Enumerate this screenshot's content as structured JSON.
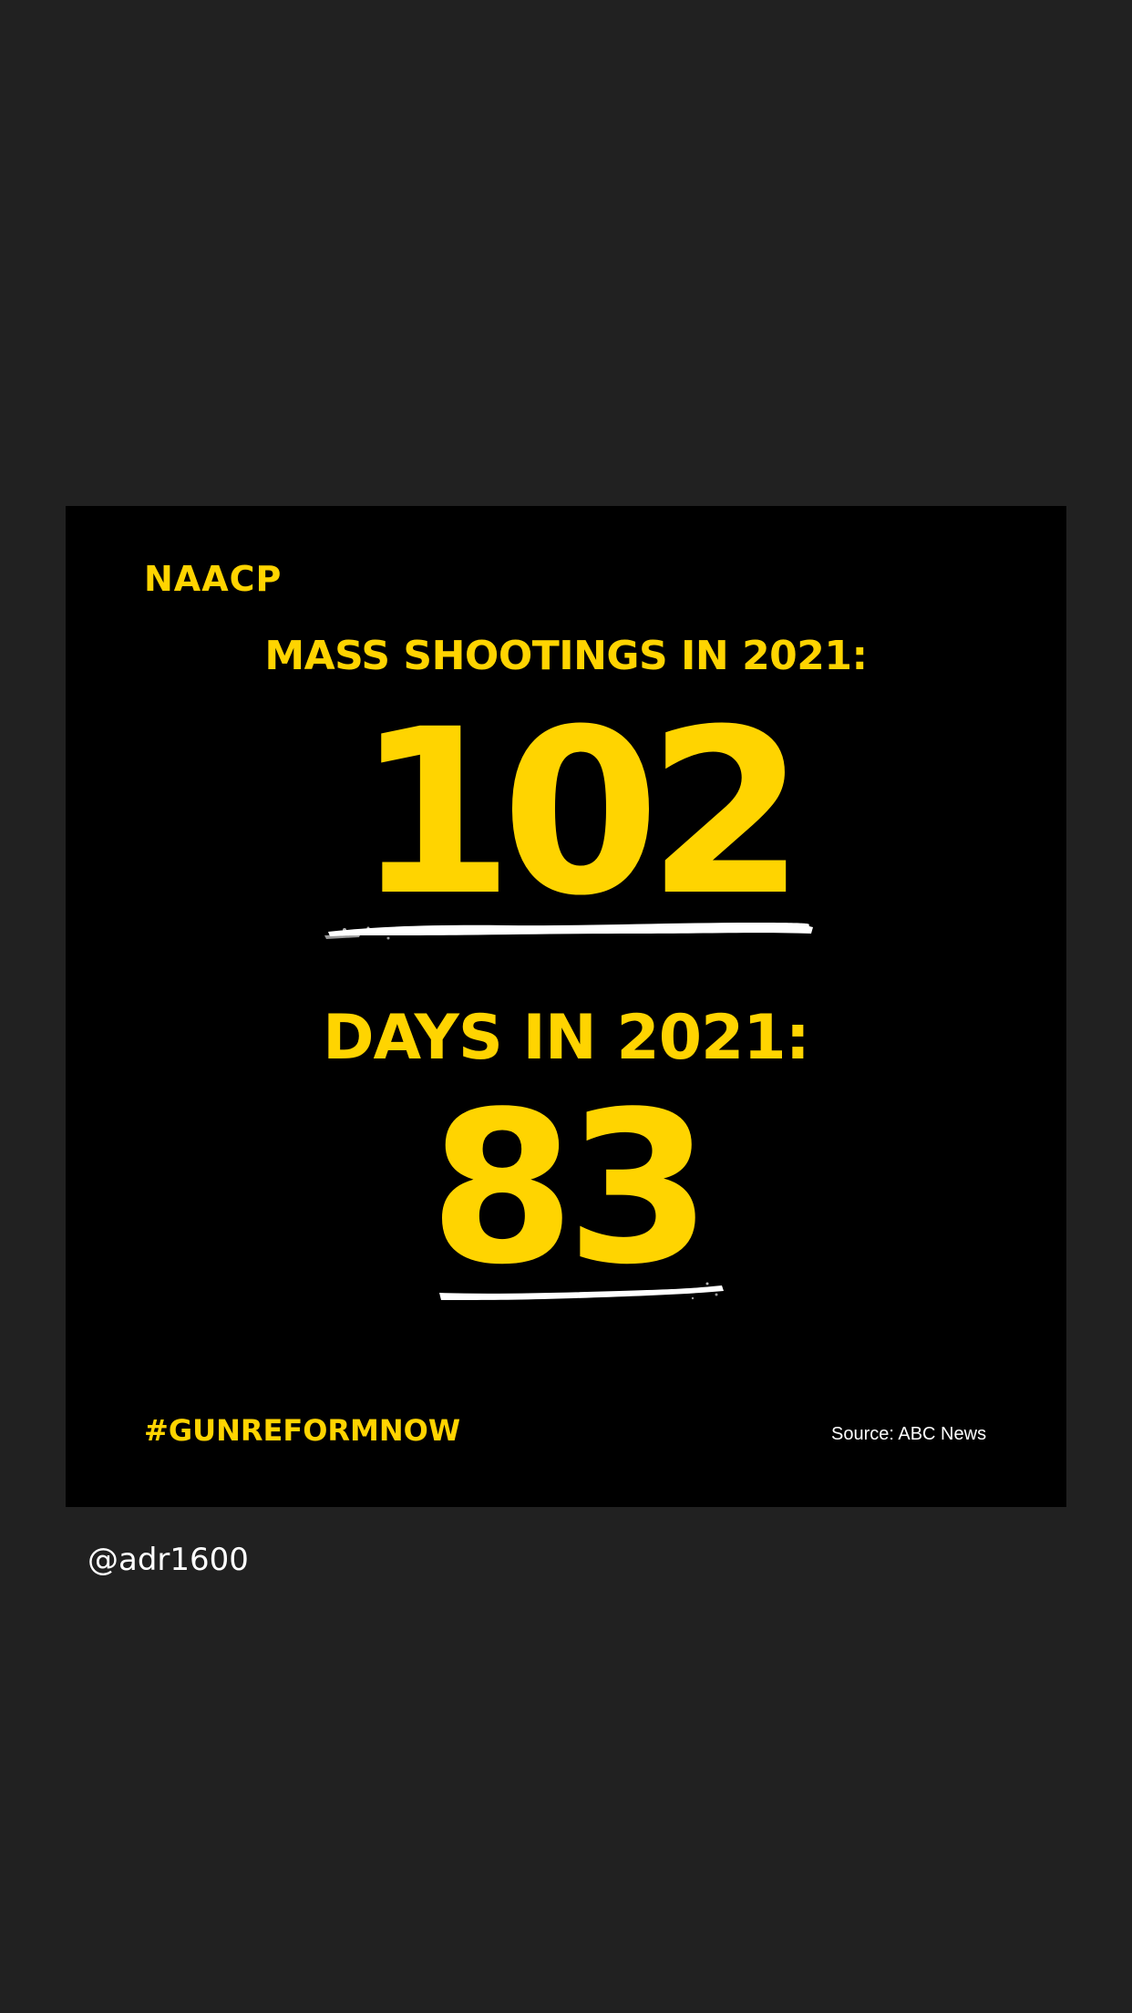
{
  "post": {
    "brand": "NAACP",
    "stat_one": {
      "heading": "MASS SHOOTINGS IN 2021:",
      "value": "102"
    },
    "stat_two": {
      "heading": "DAYS IN 2021:",
      "value": "83"
    },
    "hashtag": "#GUNREFORMNOW",
    "source": "Source: ABC News"
  },
  "caption": {
    "handle": "@adr1600"
  },
  "colors": {
    "page_background": "#212121",
    "card_background": "#000000",
    "accent": "#ffd400",
    "stroke": "#ffffff"
  }
}
